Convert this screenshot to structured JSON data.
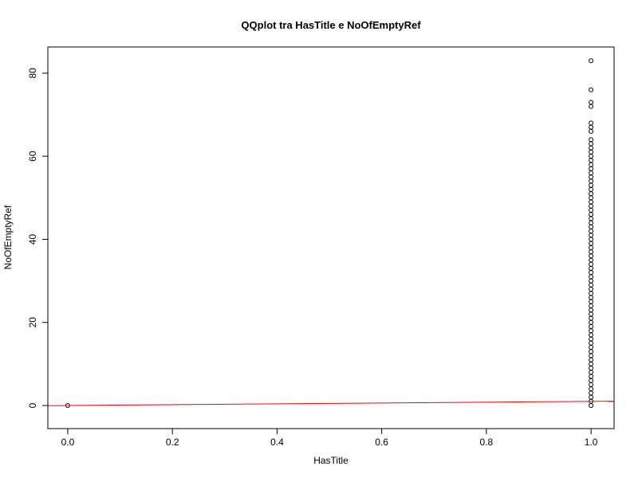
{
  "chart_data": {
    "type": "scatter",
    "title": "QQplot tra HasTitle e NoOfEmptyRef",
    "x_label": "HasTitle",
    "y_label": "NoOfEmptyRef",
    "x": [
      0,
      1,
      1,
      1,
      1,
      1,
      1,
      1,
      1,
      1,
      1,
      1,
      1,
      1,
      1,
      1,
      1,
      1,
      1,
      1,
      1,
      1,
      1,
      1,
      1,
      1,
      1,
      1,
      1,
      1,
      1,
      1,
      1,
      1,
      1,
      1,
      1,
      1,
      1,
      1,
      1,
      1,
      1,
      1,
      1,
      1,
      1,
      1,
      1,
      1,
      1,
      1,
      1,
      1,
      1,
      1,
      1,
      1,
      1,
      1,
      1,
      1,
      1,
      1,
      1,
      1,
      1,
      1,
      1,
      1,
      1,
      1,
      1
    ],
    "values": [
      0,
      0,
      1,
      2,
      3,
      4,
      5,
      6,
      7,
      8,
      9,
      10,
      11,
      12,
      13,
      14,
      15,
      16,
      17,
      18,
      19,
      20,
      21,
      22,
      23,
      24,
      25,
      26,
      27,
      28,
      29,
      30,
      31,
      32,
      33,
      34,
      35,
      36,
      37,
      38,
      39,
      40,
      41,
      42,
      43,
      44,
      45,
      46,
      47,
      48,
      49,
      50,
      51,
      52,
      53,
      54,
      55,
      56,
      57,
      58,
      59,
      60,
      61,
      62,
      63,
      64,
      66,
      67,
      68,
      72,
      73,
      76,
      83
    ],
    "color": "#000000",
    "reference_line": {
      "intercept": 0,
      "slope": 1,
      "color": "#ff0000"
    },
    "xlim": [
      -0.038,
      1.044
    ],
    "ylim": [
      -5.56,
      86.3
    ],
    "xticks": [
      {
        "value": 0,
        "label": "0.0"
      },
      0.2,
      0.4,
      0.6,
      0.8,
      {
        "value": 1,
        "label": "1.0"
      }
    ],
    "yticks": [
      0,
      20,
      40,
      60,
      80
    ]
  }
}
